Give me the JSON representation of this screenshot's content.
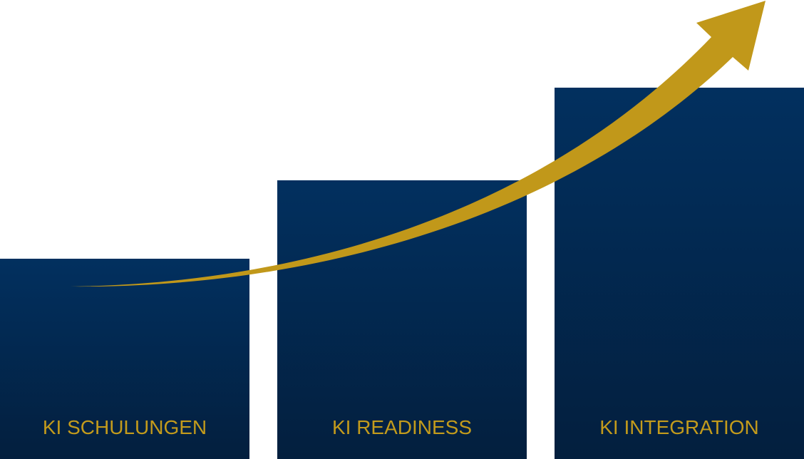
{
  "colors": {
    "bar": "#02305f",
    "bar_bottom": "#031f3e",
    "arrow": "#c1981a",
    "label": "#c39b1c"
  },
  "steps": [
    {
      "label": "KI SCHULUNGEN"
    },
    {
      "label": "KI READINESS"
    },
    {
      "label": "KI INTEGRATION"
    }
  ],
  "arrow_icon": "rising-arrow-icon"
}
